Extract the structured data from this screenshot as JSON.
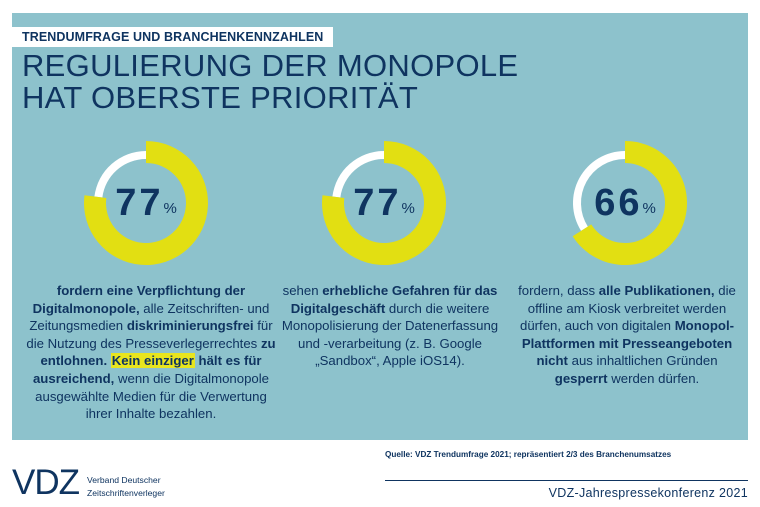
{
  "header": {
    "kicker": "TRENDUMFRAGE UND BRANCHENKENNZAHLEN",
    "title_line1": "REGULIERUNG DER MONOPOLE",
    "title_line2": "HAT OBERSTE PRIORITÄT"
  },
  "colors": {
    "panel": "#8dc2cc",
    "accent": "#e2df12",
    "track": "#ffffff",
    "text": "#0f3460"
  },
  "chart_data": {
    "type": "pie",
    "title": "Regulierung der Monopole hat oberste Priorität",
    "unit": "%",
    "items": [
      {
        "name": "Verpflichtung der Digitalmonopole zur Entlohnung",
        "value": 77
      },
      {
        "name": "Erhebliche Gefahren für das Digitalgeschäft",
        "value": 77
      },
      {
        "name": "Publikationen dürfen nicht gesperrt werden",
        "value": 66
      }
    ]
  },
  "stats": [
    {
      "value": "77",
      "unit": "%",
      "text": [
        [
          [
            "b",
            "fordern eine Verpflichtung der"
          ]
        ],
        [
          [
            "b",
            "Digitalmonopole,"
          ],
          [
            "n",
            " alle Zeitschriften- und"
          ]
        ],
        [
          [
            "n",
            "Zeitungsmedien "
          ],
          [
            "b",
            "diskriminierungsfrei"
          ],
          [
            "n",
            " für"
          ]
        ],
        [
          [
            "n",
            "die Nutzung des Presseverlegerrechtes "
          ],
          [
            "b",
            "zu"
          ]
        ],
        [
          [
            "b",
            "entlohnen. "
          ],
          [
            "h",
            "Kein einziger"
          ],
          [
            "b",
            " hält es für"
          ]
        ],
        [
          [
            "b",
            "ausreichend,"
          ],
          [
            "n",
            " wenn die Digitalmonopole"
          ]
        ],
        [
          [
            "n",
            "ausgewählte Medien für die Verwertung"
          ]
        ],
        [
          [
            "n",
            "ihrer Inhalte bezahlen."
          ]
        ]
      ]
    },
    {
      "value": "77",
      "unit": "%",
      "text": [
        [
          [
            "n",
            "sehen "
          ],
          [
            "b",
            "erhebliche Gefahren für das"
          ]
        ],
        [
          [
            "b",
            "Digitalgeschäft"
          ],
          [
            "n",
            " durch die weitere"
          ]
        ],
        [
          [
            "n",
            "Monopolisierung der Datenerfassung"
          ]
        ],
        [
          [
            "n",
            "und -verarbeitung (z. B. Google"
          ]
        ],
        [
          [
            "n",
            "„Sandbox“, Apple iOS14)."
          ]
        ]
      ]
    },
    {
      "value": "66",
      "unit": "%",
      "text": [
        [
          [
            "n",
            "fordern, dass "
          ],
          [
            "b",
            "alle Publikationen,"
          ],
          [
            "n",
            " die"
          ]
        ],
        [
          [
            "n",
            "offline am Kiosk verbreitet werden"
          ]
        ],
        [
          [
            "n",
            "dürfen, auch von digitalen "
          ],
          [
            "b",
            "Monopol-"
          ]
        ],
        [
          [
            "b",
            "Plattformen mit Presseangeboten"
          ]
        ],
        [
          [
            "b",
            "nicht"
          ],
          [
            "n",
            " aus inhaltlichen Gründen"
          ]
        ],
        [
          [
            "b",
            "gesperrt"
          ],
          [
            "n",
            " werden dürfen."
          ]
        ]
      ]
    }
  ],
  "footer": {
    "source": "Quelle: VDZ Trendumfrage 2021; repräsentiert 2/3 des Branchenumsatzes",
    "logo": "VDZ",
    "org_line1": "Verband Deutscher",
    "org_line2": "Zeitschriftenverleger",
    "event": "VDZ-Jahrespressekonferenz 2021"
  }
}
